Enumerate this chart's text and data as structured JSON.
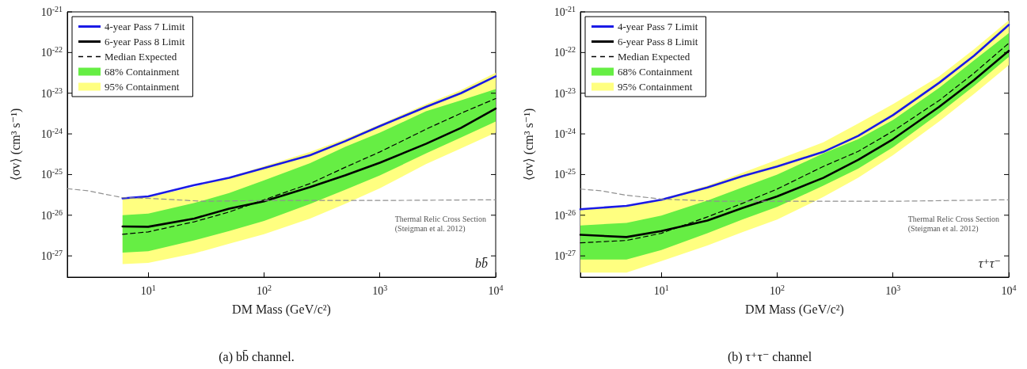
{
  "chart_data": [
    {
      "type": "line",
      "xlabel": "DM Mass (GeV/c²)",
      "ylabel": "⟨σv⟩ (cm³ s⁻¹)",
      "log": "xy",
      "legend": "top left",
      "xlim": [
        2,
        10000
      ],
      "xticks": [
        {
          "value": 10,
          "label": "10$^{1}$"
        },
        {
          "value": 100,
          "label": "10$^{2}$"
        },
        {
          "value": 1000,
          "label": "10$^{3}$"
        },
        {
          "value": 10000,
          "label": "10$^{4}$"
        }
      ],
      "ylim": [
        3e-28,
        1e-21
      ],
      "yticks": [
        {
          "value": 1e-27,
          "label": "10$^{-27}$"
        },
        {
          "value": 1e-26,
          "label": "10$^{-26}$"
        },
        {
          "value": 1e-25,
          "label": "10$^{-25}$"
        },
        {
          "value": 1e-24,
          "label": "10$^{-24}$"
        },
        {
          "value": 1e-23,
          "label": "10$^{-23}$"
        },
        {
          "value": 1e-22,
          "label": "10$^{-22}$"
        },
        {
          "value": 1e-21,
          "label": "10$^{-21}$"
        }
      ],
      "series": [
        {
          "name": "4-year Pass 7 Limit",
          "type": "line",
          "color": "#1a1ae6",
          "x": [
            6,
            10,
            25,
            50,
            100,
            250,
            500,
            1000,
            2500,
            5000,
            10000
          ],
          "values": [
            2.6e-26,
            2.9e-26,
            5.5e-26,
            8.3e-26,
            1.45e-25,
            3e-25,
            6.6e-25,
            1.55e-24,
            4.6e-24,
            1e-23,
            2.6e-23
          ]
        },
        {
          "name": "6-year Pass 8 Limit",
          "type": "line",
          "color": "#000000",
          "x": [
            6,
            10,
            25,
            50,
            100,
            250,
            500,
            1000,
            2500,
            5000,
            10000
          ],
          "values": [
            5.3e-27,
            5.2e-27,
            8.3e-27,
            1.45e-26,
            2.2e-26,
            4.9e-26,
            9.5e-26,
            1.95e-25,
            5.7e-25,
            1.4e-24,
            4.2e-24
          ]
        },
        {
          "name": "Median Expected",
          "type": "line",
          "color": "#000000",
          "line_style": "dashed",
          "x": [
            6,
            10,
            25,
            50,
            100,
            250,
            500,
            1000,
            2500,
            5000,
            10000
          ],
          "values": [
            3.4e-27,
            3.9e-27,
            6.9e-27,
            1.2e-26,
            2.4e-26,
            6e-26,
            1.5e-25,
            3.6e-25,
            1.3e-24,
            3.2e-24,
            7.4e-24
          ]
        },
        {
          "name": "68% Containment",
          "type": "area",
          "color": "#66ee44",
          "x": [
            6,
            10,
            25,
            50,
            100,
            250,
            500,
            1000,
            2500,
            5000,
            10000
          ],
          "values": [
            null,
            null,
            null,
            null,
            null,
            null,
            null,
            null,
            null,
            null,
            null
          ],
          "lower": [
            1.2e-27,
            1.3e-27,
            2.4e-27,
            4.1e-27,
            7.2e-27,
            1.9e-26,
            4.2e-26,
            9.5e-26,
            3.3e-25,
            8.1e-25,
            2e-24
          ],
          "upper": [
            1e-26,
            1.1e-26,
            2e-26,
            3.5e-26,
            7.2e-26,
            1.9e-25,
            4.8e-25,
            1.07e-24,
            3.6e-24,
            6.7e-24,
            1.26e-23
          ]
        },
        {
          "name": "95% Containment",
          "type": "area",
          "color": "#ffff80",
          "x": [
            6,
            10,
            25,
            50,
            100,
            250,
            500,
            1000,
            2500,
            5000,
            10000
          ],
          "values": [
            null,
            null,
            null,
            null,
            null,
            null,
            null,
            null,
            null,
            null,
            null
          ],
          "lower": [
            6.3e-28,
            6.7e-28,
            1.15e-27,
            2e-27,
            3.4e-27,
            8.3e-27,
            1.9e-26,
            4.6e-26,
            1.8e-25,
            4.4e-25,
            1.07e-24
          ],
          "upper": [
            2.5e-26,
            2.8e-26,
            5e-26,
            8.7e-26,
            1.6e-25,
            3.6e-25,
            7.5e-25,
            1.7e-24,
            5.4e-24,
            1.2e-23,
            3.2e-23
          ]
        },
        {
          "type": "line",
          "color": "#909090",
          "line_style": "dashed",
          "x": [
            2,
            3,
            6,
            10,
            30,
            100,
            1000,
            10000
          ],
          "values": [
            4.5e-26,
            4e-26,
            2.7e-26,
            2.6e-26,
            2.2e-26,
            2.3e-26,
            2.3e-26,
            2.4e-26
          ]
        }
      ],
      "annotations": [
        "Thermal Relic Cross Section\n(Steigman et al. 2012)",
        "bb̄",
        "(a) bb̄ channel."
      ]
    },
    {
      "type": "line",
      "xlabel": "DM Mass (GeV/c²)",
      "ylabel": "⟨σv⟩ (cm³ s⁻¹)",
      "log": "xy",
      "legend": "top left",
      "xlim": [
        2,
        10000
      ],
      "xticks": [
        {
          "value": 10,
          "label": "10$^{1}$"
        },
        {
          "value": 100,
          "label": "10$^{2}$"
        },
        {
          "value": 1000,
          "label": "10$^{3}$"
        },
        {
          "value": 10000,
          "label": "10$^{4}$"
        }
      ],
      "ylim": [
        3e-28,
        1e-21
      ],
      "yticks": [
        {
          "value": 1e-27,
          "label": "10$^{-27}$"
        },
        {
          "value": 1e-26,
          "label": "10$^{-26}$"
        },
        {
          "value": 1e-25,
          "label": "10$^{-25}$"
        },
        {
          "value": 1e-24,
          "label": "10$^{-24}$"
        },
        {
          "value": 1e-23,
          "label": "10$^{-23}$"
        },
        {
          "value": 1e-22,
          "label": "10$^{-22}$"
        },
        {
          "value": 1e-21,
          "label": "10$^{-21}$"
        }
      ],
      "series": [
        {
          "name": "4-year Pass 7 Limit",
          "type": "line",
          "color": "#1a1ae6",
          "x": [
            2,
            5,
            10,
            25,
            50,
            100,
            250,
            500,
            1000,
            2500,
            5000,
            10000
          ],
          "values": [
            1.4e-26,
            1.7e-26,
            2.4e-26,
            4.8e-26,
            9.1e-26,
            1.58e-25,
            3.6e-25,
            8.9e-25,
            2.9e-24,
            1.8e-23,
            8.3e-23,
            4.8e-22
          ]
        },
        {
          "name": "6-year Pass 8 Limit",
          "type": "line",
          "color": "#000000",
          "x": [
            2,
            5,
            10,
            25,
            50,
            100,
            250,
            500,
            1000,
            2500,
            5000,
            10000
          ],
          "values": [
            3.3e-27,
            2.9e-27,
            4.1e-27,
            7.4e-27,
            1.5e-26,
            2.9e-26,
            8.3e-26,
            2.3e-25,
            7.4e-25,
            4.6e-24,
            2.1e-23,
            1.1e-22
          ]
        },
        {
          "name": "Median Expected",
          "type": "line",
          "color": "#000000",
          "line_style": "dashed",
          "x": [
            2,
            5,
            10,
            25,
            50,
            100,
            250,
            500,
            1000,
            2500,
            5000,
            10000
          ],
          "values": [
            2.1e-27,
            2.4e-27,
            3.6e-27,
            9.1e-27,
            1.95e-26,
            4.4e-26,
            1.58e-25,
            3.7e-25,
            1.17e-24,
            6.6e-24,
            3.1e-23,
            1.7e-22
          ]
        },
        {
          "name": "68% Containment",
          "type": "area",
          "color": "#66ee44",
          "x": [
            2,
            5,
            10,
            25,
            50,
            100,
            250,
            500,
            1000,
            2500,
            5000,
            10000
          ],
          "values": [
            null,
            null,
            null,
            null,
            null,
            null,
            null,
            null,
            null,
            null,
            null,
            null
          ],
          "lower": [
            8.1e-28,
            8.1e-28,
            1.4e-27,
            3.6e-27,
            7.8e-27,
            1.6e-26,
            5.3e-26,
            1.4e-25,
            4.7e-25,
            3.2e-24,
            1.5e-23,
            7.8e-23
          ],
          "upper": [
            5.6e-27,
            6.5e-27,
            9.8e-27,
            2.3e-26,
            4.8e-26,
            1e-25,
            3.3e-25,
            7.4e-25,
            2.2e-24,
            1.35e-23,
            6.4e-23,
            3e-22
          ]
        },
        {
          "name": "95% Containment",
          "type": "area",
          "color": "#ffff80",
          "x": [
            2,
            5,
            10,
            25,
            50,
            100,
            250,
            500,
            1000,
            2500,
            5000,
            10000
          ],
          "values": [
            null,
            null,
            null,
            null,
            null,
            null,
            null,
            null,
            null,
            null,
            null,
            null
          ],
          "lower": [
            3.9e-28,
            3.9e-28,
            7.4e-28,
            1.8e-27,
            3.8e-27,
            7.8e-27,
            2.8e-26,
            8.3e-26,
            3e-25,
            2e-24,
            9.5e-24,
            4.9e-23
          ],
          "upper": [
            1.35e-26,
            1.6e-26,
            2.5e-26,
            5.3e-26,
            1.1e-25,
            2.3e-25,
            6.2e-25,
            1.8e-24,
            5.4e-24,
            2.6e-23,
            1.2e-22,
            6.2e-22
          ]
        },
        {
          "type": "line",
          "color": "#909090",
          "line_style": "dashed",
          "x": [
            2,
            3,
            5,
            10,
            30,
            100,
            1000,
            10000
          ],
          "values": [
            4.4e-26,
            4e-26,
            3.1e-26,
            2.5e-26,
            2.2e-26,
            2.2e-26,
            2.2e-26,
            2.4e-26
          ]
        }
      ],
      "annotations": [
        "Thermal Relic Cross Section\n(Steigman et al. 2012)",
        "τ⁺τ⁻",
        "(b) τ⁺τ⁻ channel"
      ]
    }
  ]
}
